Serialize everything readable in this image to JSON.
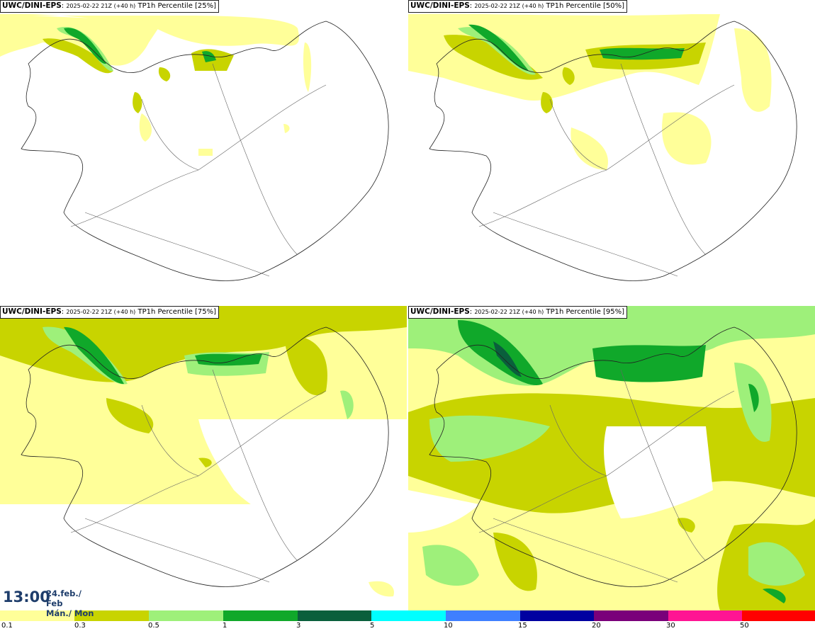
{
  "panels": [
    {
      "model": "UWC/DINI-EPS",
      "run": "2025-02-22 21Z (+40 h)",
      "field": "TP1h Percentile [25%]",
      "percentile": 25
    },
    {
      "model": "UWC/DINI-EPS",
      "run": "2025-02-22 21Z (+40 h)",
      "field": "TP1h Percentile [50%]",
      "percentile": 50
    },
    {
      "model": "UWC/DINI-EPS",
      "run": "2025-02-22 21Z (+40 h)",
      "field": "TP1h Percentile [75%]",
      "percentile": 75
    },
    {
      "model": "UWC/DINI-EPS",
      "run": "2025-02-22 21Z (+40 h)",
      "field": "TP1h Percentile [95%]",
      "percentile": 95
    }
  ],
  "valid_time": {
    "time": "13:00",
    "date_line1": "24.feb./ Feb",
    "date_line2": "Mán./ Mon"
  },
  "legend": {
    "ticks": [
      "0.1",
      "0.3",
      "0.5",
      "1",
      "3",
      "5",
      "10",
      "15",
      "20",
      "30",
      "50"
    ],
    "colors": [
      "#ffff99",
      "#c8d400",
      "#9ef07a",
      "#10a82a",
      "#0a5f3c",
      "#00ffff",
      "#3f7fff",
      "#0000a0",
      "#7a007a",
      "#ff1493",
      "#ff0000"
    ]
  },
  "colors": {
    "c1": "#ffff99",
    "c2": "#c8d400",
    "c3": "#9ef07a",
    "c4": "#10a82a",
    "c5": "#0a5f3c",
    "coast": "#222222",
    "road": "#555555",
    "title": "#1e3d6b"
  }
}
